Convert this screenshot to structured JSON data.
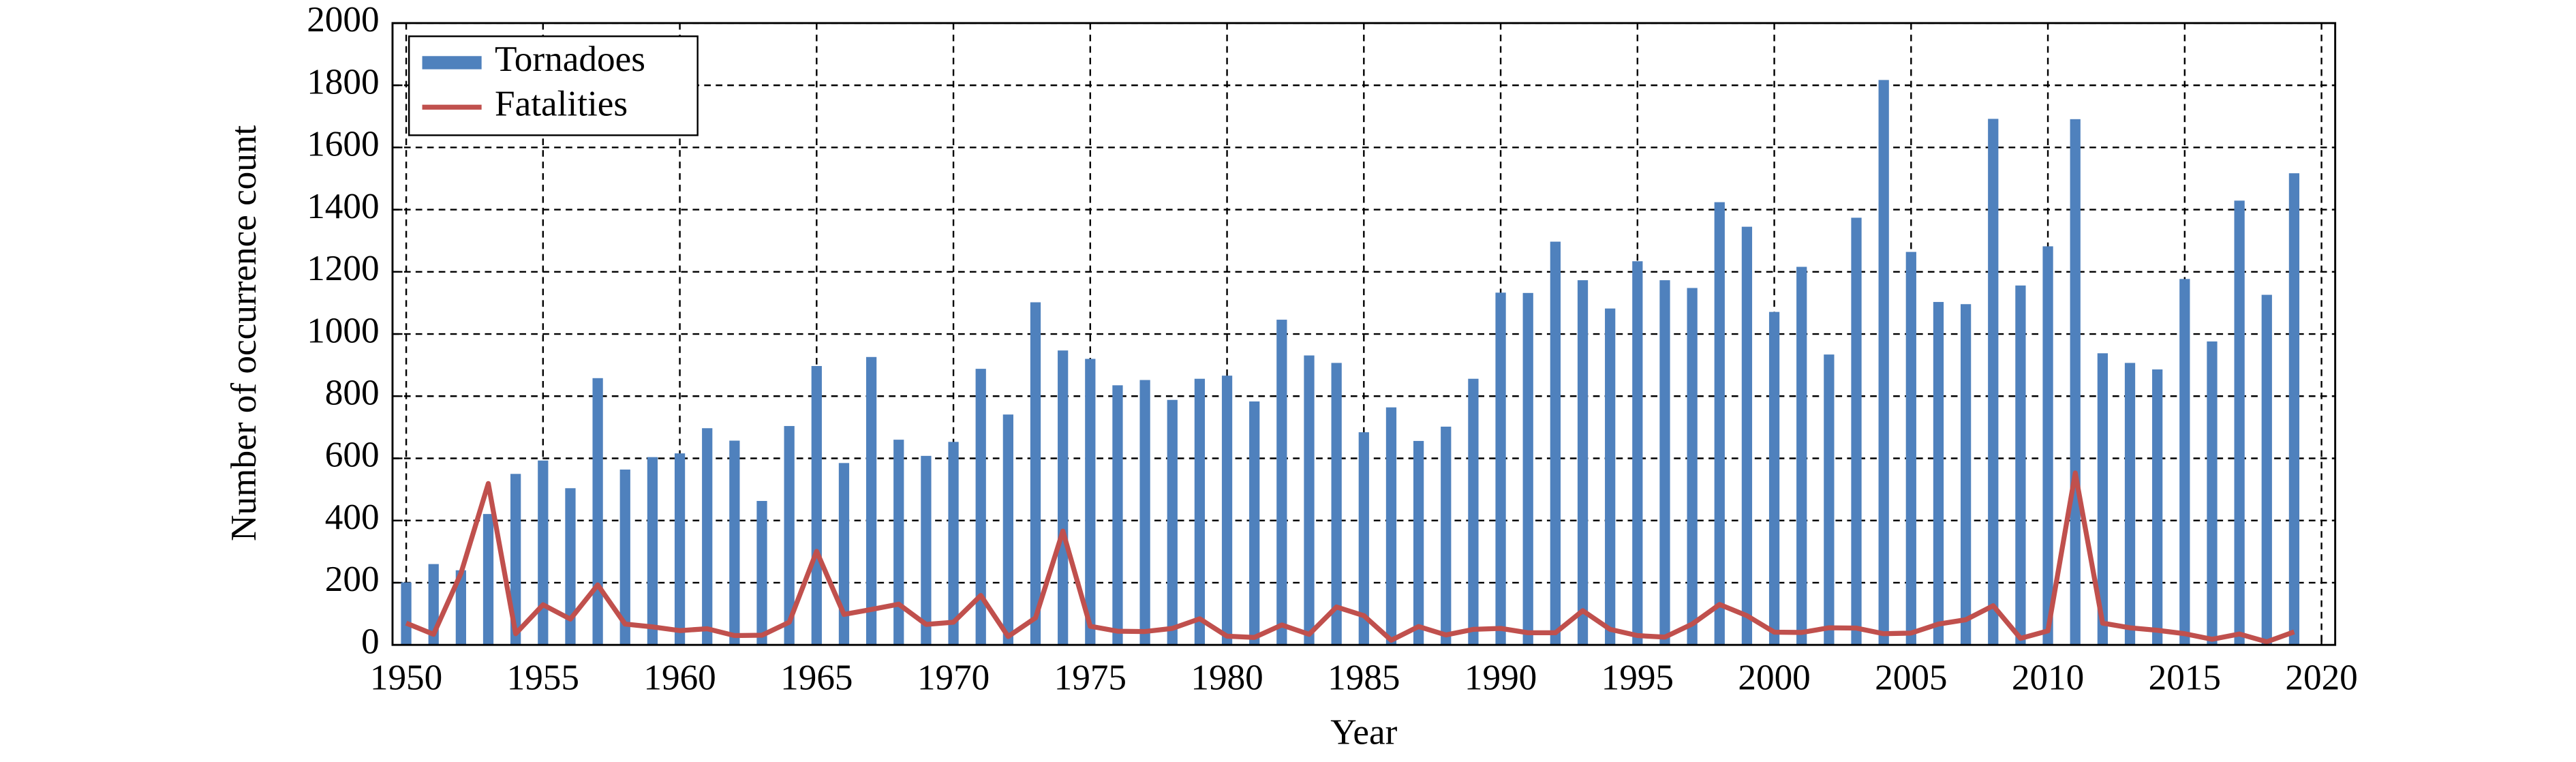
{
  "chart_data": {
    "type": "combo",
    "x_label": "Year",
    "y_label": "Number of occurrence count",
    "x": [
      1950,
      1951,
      1952,
      1953,
      1954,
      1955,
      1956,
      1957,
      1958,
      1959,
      1960,
      1961,
      1962,
      1963,
      1964,
      1965,
      1966,
      1967,
      1968,
      1969,
      1970,
      1971,
      1972,
      1973,
      1974,
      1975,
      1976,
      1977,
      1978,
      1979,
      1980,
      1981,
      1982,
      1983,
      1984,
      1985,
      1986,
      1987,
      1988,
      1989,
      1990,
      1991,
      1992,
      1993,
      1994,
      1995,
      1996,
      1997,
      1998,
      1999,
      2000,
      2001,
      2002,
      2003,
      2004,
      2005,
      2006,
      2007,
      2008,
      2009,
      2010,
      2011,
      2012,
      2013,
      2014,
      2015,
      2016,
      2017,
      2018,
      2019
    ],
    "series": [
      {
        "name": "Tornadoes",
        "type": "bar",
        "color": "#4f81bd",
        "values": [
          201,
          260,
          240,
          421,
          550,
          593,
          504,
          858,
          564,
          604,
          616,
          697,
          657,
          463,
          704,
          897,
          585,
          926,
          660,
          608,
          653,
          888,
          741,
          1102,
          947,
          920,
          835,
          852,
          788,
          856,
          866,
          783,
          1046,
          931,
          907,
          684,
          764,
          656,
          702,
          856,
          1133,
          1132,
          1297,
          1173,
          1082,
          1234,
          1173,
          1148,
          1424,
          1345,
          1071,
          1216,
          934,
          1374,
          1817,
          1264,
          1103,
          1096,
          1692,
          1156,
          1282,
          1691,
          938,
          907,
          886,
          1177,
          976,
          1429,
          1126,
          1517
        ]
      },
      {
        "name": "Fatalities",
        "type": "line",
        "color": "#c0504d",
        "values": [
          70,
          34,
          230,
          519,
          36,
          129,
          83,
          193,
          67,
          58,
          46,
          52,
          30,
          31,
          73,
          301,
          98,
          114,
          131,
          66,
          73,
          159,
          27,
          87,
          366,
          60,
          44,
          43,
          53,
          84,
          28,
          24,
          64,
          34,
          122,
          94,
          15,
          59,
          32,
          50,
          53,
          39,
          39,
          110,
          50,
          30,
          25,
          67,
          130,
          94,
          41,
          40,
          55,
          54,
          36,
          38,
          67,
          81,
          126,
          21,
          45,
          553,
          70,
          55,
          47,
          36,
          18,
          35,
          10,
          42
        ]
      }
    ],
    "xlim": [
      1949.5,
      2020.5
    ],
    "xticks": [
      1950,
      1955,
      1960,
      1965,
      1970,
      1975,
      1980,
      1985,
      1990,
      1995,
      2000,
      2005,
      2010,
      2015,
      2020
    ],
    "ylim": [
      0,
      2000
    ],
    "yticks": [
      0,
      200,
      400,
      600,
      800,
      1000,
      1200,
      1400,
      1600,
      1800,
      2000
    ],
    "grid": true,
    "legend": "upper-left"
  }
}
